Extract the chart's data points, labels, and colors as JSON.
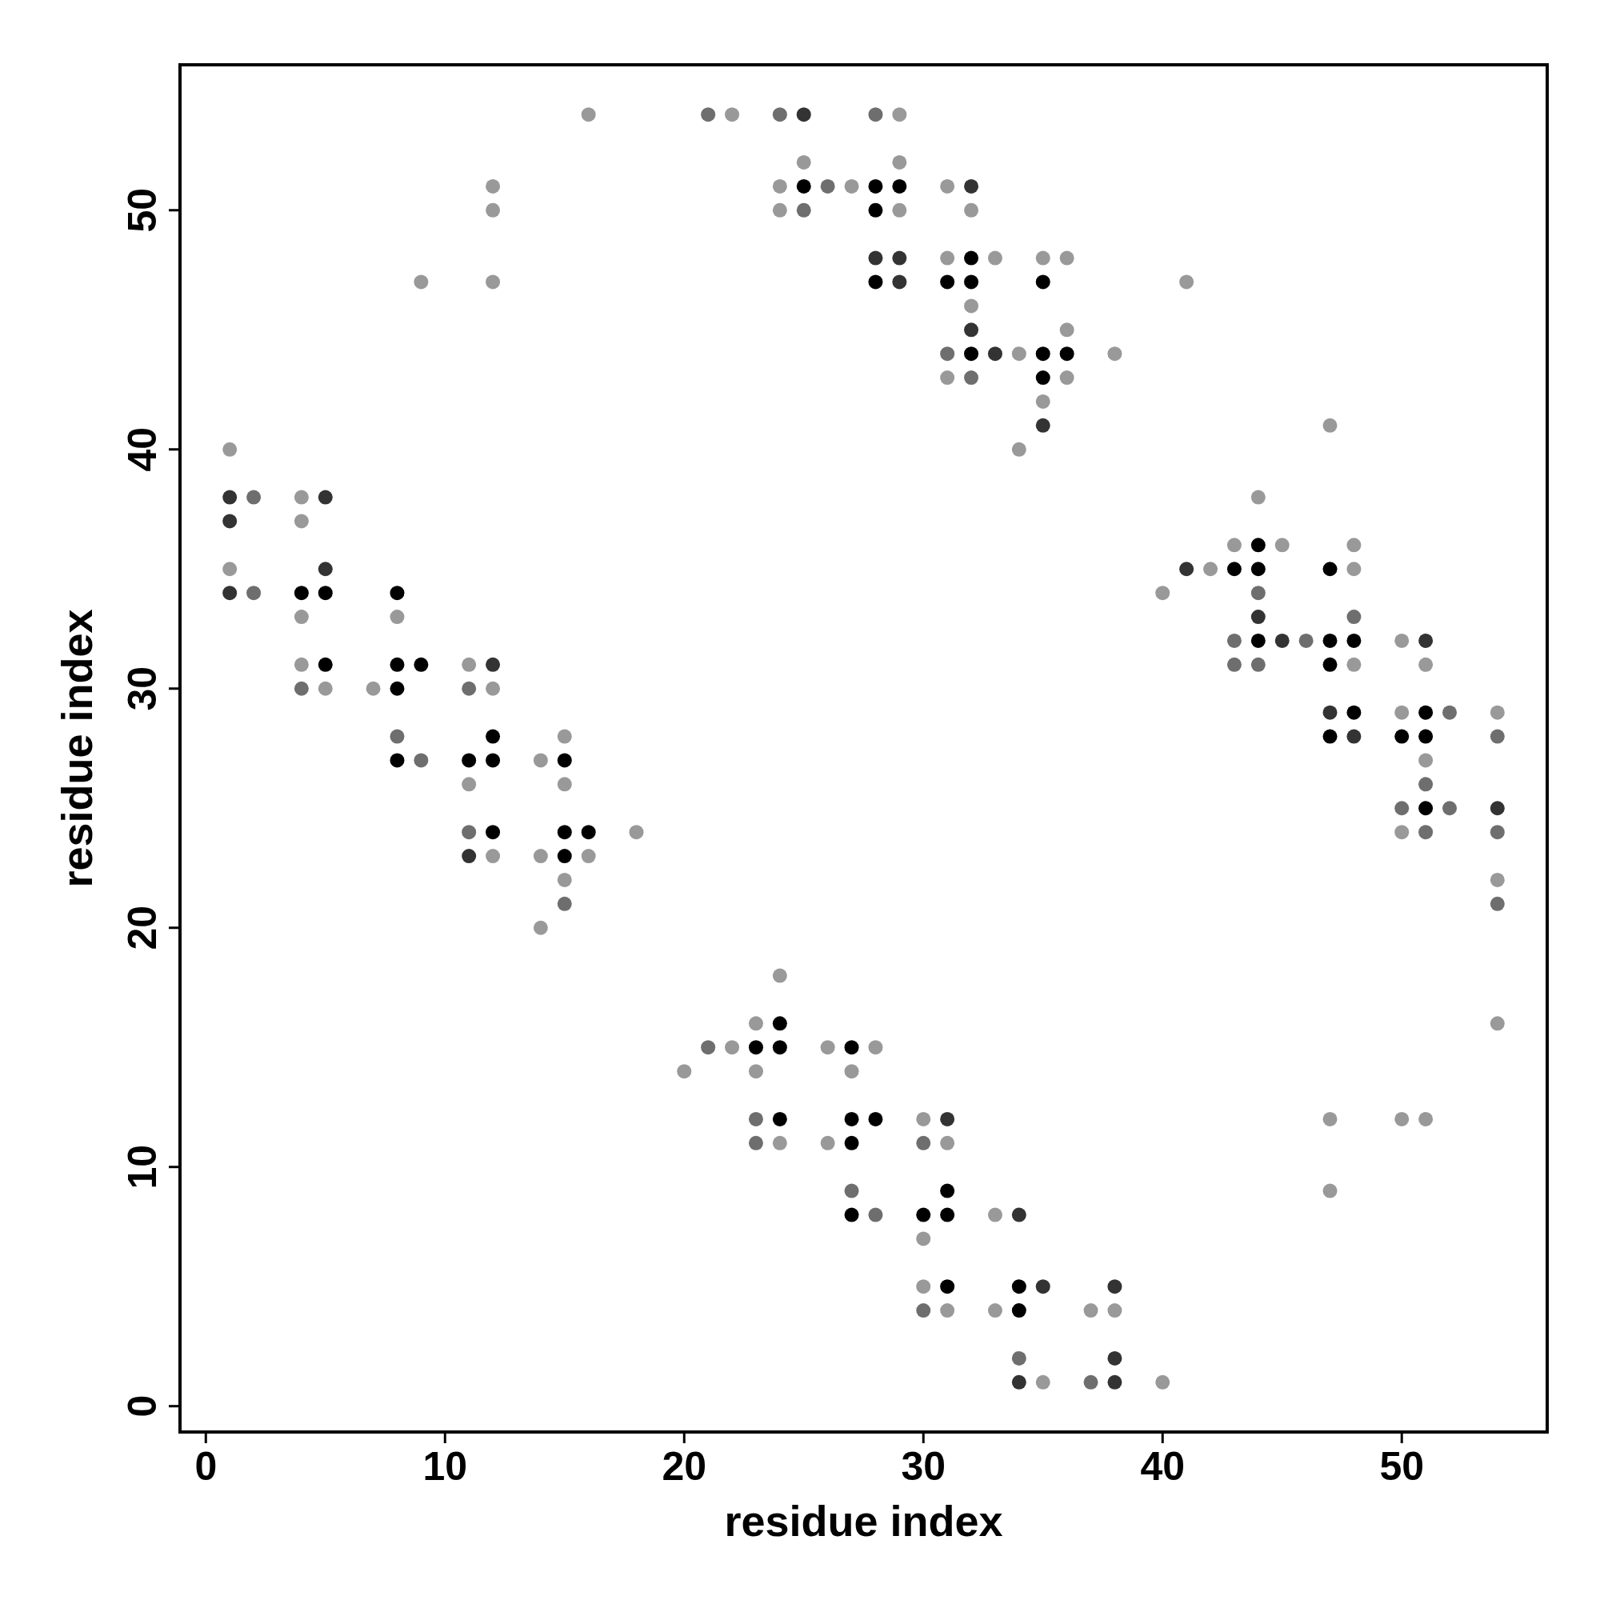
{
  "chart_data": {
    "type": "scatter",
    "xlabel": "residue index",
    "ylabel": "residue index",
    "xlim": [
      -1.08,
      56.08
    ],
    "ylim": [
      -1.08,
      56.08
    ],
    "xticks": [
      0,
      10,
      20,
      30,
      40,
      50
    ],
    "yticks": [
      0,
      10,
      20,
      30,
      40,
      50
    ],
    "marker": "circle",
    "series": [
      {
        "color": "#999999",
        "x": [
          16,
          22,
          29,
          25,
          29,
          12,
          24,
          27,
          31,
          12,
          24,
          29,
          32,
          31,
          33,
          35,
          36,
          9,
          12,
          41,
          32,
          36,
          34,
          38,
          31,
          36,
          35,
          47,
          1,
          34,
          4,
          44,
          4,
          43,
          45,
          48,
          1,
          42,
          48,
          40,
          4,
          8,
          50,
          4,
          11,
          48,
          51,
          5,
          7,
          12,
          50,
          54,
          15,
          14,
          51,
          11,
          15,
          18,
          50,
          12,
          14,
          16,
          15,
          54,
          14,
          24,
          23,
          54,
          22,
          26,
          28,
          20,
          23,
          27,
          30,
          47,
          50,
          51,
          24,
          26,
          31,
          47,
          33,
          30,
          30,
          31,
          33,
          37,
          38,
          35,
          40
        ],
        "values": [
          54,
          54,
          54,
          52,
          52,
          51,
          51,
          51,
          51,
          50,
          50,
          50,
          50,
          48,
          48,
          48,
          48,
          47,
          47,
          47,
          46,
          45,
          44,
          44,
          43,
          43,
          42,
          41,
          40,
          40,
          38,
          38,
          37,
          36,
          36,
          36,
          35,
          35,
          35,
          34,
          33,
          33,
          32,
          31,
          31,
          31,
          31,
          30,
          30,
          30,
          29,
          29,
          28,
          27,
          27,
          26,
          26,
          24,
          24,
          23,
          23,
          23,
          22,
          22,
          20,
          18,
          16,
          16,
          15,
          15,
          15,
          14,
          14,
          14,
          12,
          12,
          12,
          12,
          11,
          11,
          11,
          9,
          8,
          7,
          5,
          4,
          4,
          4,
          4,
          1,
          1
        ]
      },
      {
        "color": "#6e6e6e",
        "x": [
          21,
          24,
          28,
          26,
          25,
          31,
          32,
          2,
          2,
          44,
          48,
          43,
          46,
          43,
          44,
          4,
          11,
          52,
          8,
          54,
          9,
          51,
          50,
          52,
          11,
          51,
          54,
          15,
          54,
          21,
          23,
          23,
          30,
          27,
          28,
          30,
          34,
          37
        ],
        "values": [
          54,
          54,
          54,
          51,
          50,
          44,
          43,
          38,
          34,
          34,
          33,
          32,
          32,
          31,
          31,
          30,
          30,
          29,
          28,
          28,
          27,
          26,
          25,
          25,
          24,
          24,
          24,
          21,
          21,
          15,
          12,
          11,
          11,
          9,
          8,
          4,
          2,
          1
        ]
      },
      {
        "color": "#333333",
        "x": [
          25,
          32,
          28,
          29,
          29,
          32,
          33,
          35,
          1,
          5,
          1,
          5,
          41,
          1,
          44,
          45,
          51,
          12,
          47,
          48,
          54,
          11,
          31,
          34,
          35,
          38,
          38,
          34,
          38
        ],
        "values": [
          54,
          51,
          48,
          48,
          47,
          45,
          44,
          41,
          38,
          38,
          37,
          35,
          35,
          34,
          33,
          32,
          32,
          31,
          29,
          28,
          25,
          23,
          12,
          8,
          5,
          5,
          2,
          1,
          1
        ]
      },
      {
        "color": "#000000",
        "x": [
          25,
          28,
          29,
          28,
          32,
          28,
          31,
          32,
          35,
          32,
          35,
          36,
          35,
          44,
          43,
          44,
          47,
          4,
          5,
          8,
          44,
          47,
          48,
          5,
          8,
          9,
          47,
          8,
          48,
          51,
          12,
          47,
          50,
          51,
          8,
          11,
          12,
          15,
          51,
          12,
          15,
          16,
          15,
          24,
          23,
          24,
          27,
          24,
          27,
          28,
          27,
          31,
          27,
          30,
          31,
          31,
          34,
          34
        ],
        "values": [
          51,
          51,
          51,
          50,
          48,
          47,
          47,
          47,
          47,
          44,
          44,
          44,
          43,
          36,
          35,
          35,
          35,
          34,
          34,
          34,
          32,
          32,
          32,
          31,
          31,
          31,
          31,
          30,
          29,
          29,
          28,
          28,
          28,
          28,
          27,
          27,
          27,
          27,
          25,
          24,
          24,
          24,
          23,
          16,
          15,
          15,
          15,
          12,
          12,
          12,
          11,
          9,
          8,
          8,
          8,
          5,
          5,
          4
        ]
      }
    ]
  }
}
